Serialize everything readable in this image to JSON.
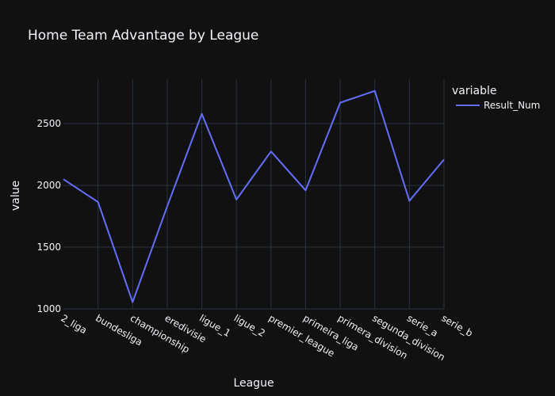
{
  "chart_data": {
    "type": "line",
    "title": "Home Team Advantage by League",
    "xlabel": "League",
    "ylabel": "value",
    "categories": [
      "2_liga",
      "bundesliga",
      "championship",
      "eredivisie",
      "ligue_1",
      "ligue_2",
      "premier_league",
      "primeira_liga",
      "primera_division",
      "segunda_division",
      "serie_a",
      "serie_b"
    ],
    "series": [
      {
        "name": "Result_Num",
        "values": [
          2050,
          1865,
          1055,
          1830,
          2580,
          1885,
          2275,
          1960,
          2670,
          2765,
          1875,
          2210
        ]
      }
    ],
    "yticks": [
      1000,
      1500,
      2000,
      2500
    ],
    "ylim": [
      1000,
      2860
    ],
    "legend": {
      "title": "variable",
      "position": "top-right"
    },
    "grid": true,
    "colors": {
      "background": "#111111",
      "grid": "#283442",
      "line": "#636efa",
      "text": "#f2f5fa"
    }
  }
}
